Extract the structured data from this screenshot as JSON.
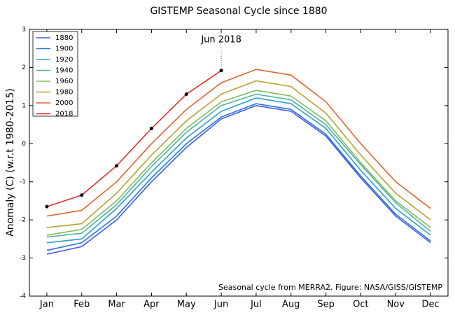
{
  "chart_data": {
    "type": "line",
    "title": "GISTEMP Seasonal Cycle since 1880",
    "y_label": "Anomaly (C) (w.r.t 1980-2015)",
    "annotation": "Jun 2018",
    "footnote": "Seasonal cycle from MERRA2. Figure: NASA/GISS/GISTEMP",
    "categories": [
      "Jan",
      "Feb",
      "Mar",
      "Apr",
      "May",
      "Jun",
      "Jul",
      "Aug",
      "Sep",
      "Oct",
      "Nov",
      "Dec"
    ],
    "ylim": [
      -4,
      3
    ],
    "yticks": [
      -4,
      -3,
      -2,
      -1,
      0,
      1,
      2,
      3
    ],
    "legend": "upper left",
    "series": [
      {
        "name": "1880",
        "color": "#3b5ee0",
        "values": [
          -2.9,
          -2.7,
          -2.0,
          -1.0,
          -0.1,
          0.65,
          1.0,
          0.85,
          0.2,
          -0.9,
          -1.9,
          -2.6
        ]
      },
      {
        "name": "1900",
        "color": "#2a72e0",
        "values": [
          -2.8,
          -2.6,
          -1.9,
          -0.9,
          0.0,
          0.7,
          1.05,
          0.9,
          0.25,
          -0.85,
          -1.85,
          -2.55
        ]
      },
      {
        "name": "1920",
        "color": "#2c9fd0",
        "values": [
          -2.6,
          -2.5,
          -1.7,
          -0.75,
          0.15,
          0.85,
          1.2,
          1.05,
          0.4,
          -0.7,
          -1.7,
          -2.4
        ]
      },
      {
        "name": "1940",
        "color": "#4db3a0",
        "values": [
          -2.45,
          -2.35,
          -1.6,
          -0.6,
          0.3,
          1.0,
          1.3,
          1.15,
          0.5,
          -0.55,
          -1.55,
          -2.3
        ]
      },
      {
        "name": "1960",
        "color": "#7cbf5a",
        "values": [
          -2.4,
          -2.25,
          -1.5,
          -0.5,
          0.4,
          1.1,
          1.4,
          1.25,
          0.6,
          -0.5,
          -1.5,
          -2.2
        ]
      },
      {
        "name": "1980",
        "color": "#b9a030",
        "values": [
          -2.2,
          -2.1,
          -1.3,
          -0.3,
          0.6,
          1.3,
          1.65,
          1.5,
          0.8,
          -0.3,
          -1.3,
          -2.0
        ]
      },
      {
        "name": "2000",
        "color": "#e0652c",
        "values": [
          -1.9,
          -1.75,
          -1.0,
          0.0,
          0.9,
          1.6,
          1.95,
          1.8,
          1.1,
          0.0,
          -1.0,
          -1.7
        ]
      },
      {
        "name": "2018",
        "color": "#e03030",
        "values": [
          -1.65,
          -1.35,
          -0.58,
          0.4,
          1.3,
          1.92,
          null,
          null,
          null,
          null,
          null,
          null
        ]
      }
    ]
  }
}
